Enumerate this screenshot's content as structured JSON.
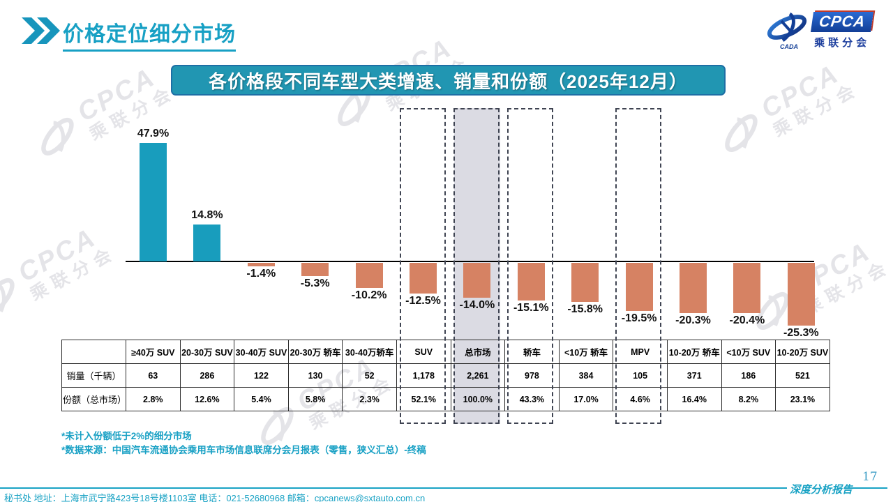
{
  "header": {
    "title": "价格定位细分市场"
  },
  "logo": {
    "name": "CPCA",
    "subtitle": "乘联分会",
    "swoosh_caption": "CADA"
  },
  "banner_title": "各价格段不同车型大类增速、销量和份额（2025年12月）",
  "chart_data": {
    "type": "bar",
    "title": "各价格段不同车型大类增速、销量和份额（2025年12月）",
    "categories": [
      "≥40万 SUV",
      "20-30万 SUV",
      "30-40万 SUV",
      "20-30万 轿车",
      "30-40万轿车",
      "SUV",
      "总市场",
      "轿车",
      "<10万 轿车",
      "MPV",
      "10-20万 轿车",
      "<10万 SUV",
      "10-20万 SUV"
    ],
    "series": [
      {
        "name": "增速",
        "values": [
          47.9,
          14.8,
          -1.4,
          -5.3,
          -10.2,
          -12.5,
          -14.0,
          -15.1,
          -15.8,
          -19.5,
          -20.3,
          -20.4,
          -25.3
        ],
        "labels": [
          "47.9%",
          "14.8%",
          "-1.4%",
          "-5.3%",
          "-10.2%",
          "-12.5%",
          "-14.0%",
          "-15.1%",
          "-15.8%",
          "-19.5%",
          "-20.3%",
          "-20.4%",
          "-25.3%"
        ]
      }
    ],
    "highlighted_categories": [
      "SUV",
      "总市场",
      "轿车",
      "MPV"
    ],
    "emphasized_category": "总市场",
    "ylim": [
      -30,
      55
    ],
    "grid": false,
    "legend": "none",
    "colors": {
      "positive": "#189DBD",
      "negative": "#D68263",
      "highlight_fill": "#DBDBE3",
      "dashed_border": "#3F4452"
    }
  },
  "table": {
    "corner": "",
    "columns": [
      "≥40万 SUV",
      "20-30万 SUV",
      "30-40万 SUV",
      "20-30万 轿车",
      "30-40万轿车",
      "SUV",
      "总市场",
      "轿车",
      "<10万 轿车",
      "MPV",
      "10-20万 轿车",
      "<10万 SUV",
      "10-20万 SUV"
    ],
    "rows": [
      {
        "label": "销量（千辆）",
        "values": [
          "63",
          "286",
          "122",
          "130",
          "52",
          "1,178",
          "2,261",
          "978",
          "384",
          "105",
          "371",
          "186",
          "521"
        ]
      },
      {
        "label": "份额（总市场）",
        "values": [
          "2.8%",
          "12.6%",
          "5.4%",
          "5.8%",
          "2.3%",
          "52.1%",
          "100.0%",
          "43.3%",
          "17.0%",
          "4.6%",
          "16.4%",
          "8.2%",
          "23.1%"
        ]
      }
    ]
  },
  "footnotes": [
    "*未计入份额低于2%的细分市场",
    "*数据来源：中国汽车流通协会乘用车市场信息联席分会月报表（零售，狭义汇总）-终稿"
  ],
  "footer": {
    "secretariat": "秘书处  地址：上海市武宁路423号18号楼1103室 电话：021-52680968  邮箱：cpcanews@sxtauto.com.cn",
    "report_type": "深度分析报告",
    "page_number": "17"
  },
  "watermark": {
    "brand": "CPCA",
    "subtitle": "乘联分会"
  }
}
